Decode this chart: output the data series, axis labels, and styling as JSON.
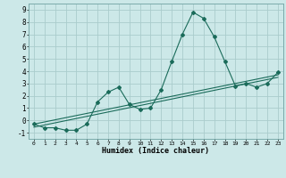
{
  "title": "",
  "xlabel": "Humidex (Indice chaleur)",
  "ylabel": "",
  "bg_color": "#cce8e8",
  "grid_color": "#aacccc",
  "line_color": "#1a6b5a",
  "xlim": [
    -0.5,
    23.5
  ],
  "ylim": [
    -1.5,
    9.5
  ],
  "xticks": [
    0,
    1,
    2,
    3,
    4,
    5,
    6,
    7,
    8,
    9,
    10,
    11,
    12,
    13,
    14,
    15,
    16,
    17,
    18,
    19,
    20,
    21,
    22,
    23
  ],
  "yticks": [
    -1,
    0,
    1,
    2,
    3,
    4,
    5,
    6,
    7,
    8,
    9
  ],
  "curve_x": [
    0,
    1,
    2,
    3,
    4,
    5,
    6,
    7,
    8,
    9,
    10,
    11,
    12,
    13,
    14,
    15,
    16,
    17,
    18,
    19,
    20,
    21,
    22,
    23
  ],
  "curve_y": [
    -0.3,
    -0.6,
    -0.6,
    -0.8,
    -0.8,
    -0.3,
    1.5,
    2.3,
    2.7,
    1.3,
    0.9,
    1.0,
    2.5,
    4.8,
    7.0,
    8.8,
    8.3,
    6.8,
    4.8,
    2.8,
    3.0,
    2.7,
    3.0,
    3.9
  ],
  "trend_x": [
    0,
    23
  ],
  "trend_y": [
    -0.55,
    3.5
  ],
  "trend2_x": [
    0,
    23
  ],
  "trend2_y": [
    -0.3,
    3.7
  ]
}
